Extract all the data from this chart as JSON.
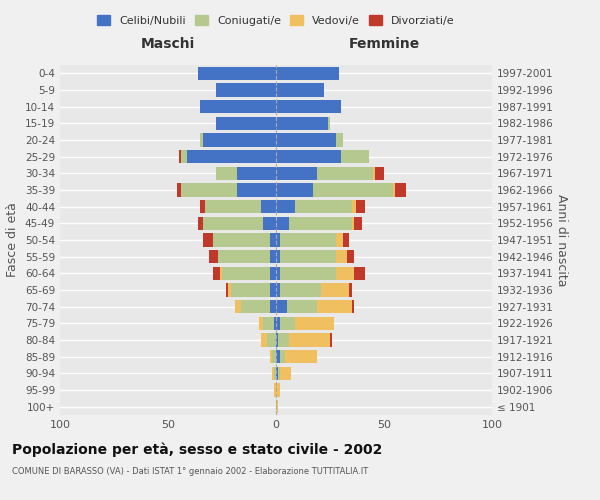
{
  "age_groups": [
    "100+",
    "95-99",
    "90-94",
    "85-89",
    "80-84",
    "75-79",
    "70-74",
    "65-69",
    "60-64",
    "55-59",
    "50-54",
    "45-49",
    "40-44",
    "35-39",
    "30-34",
    "25-29",
    "20-24",
    "15-19",
    "10-14",
    "5-9",
    "0-4"
  ],
  "birth_years": [
    "≤ 1901",
    "1902-1906",
    "1907-1911",
    "1912-1916",
    "1917-1921",
    "1922-1926",
    "1927-1931",
    "1932-1936",
    "1937-1941",
    "1942-1946",
    "1947-1951",
    "1952-1956",
    "1957-1961",
    "1962-1966",
    "1967-1971",
    "1972-1976",
    "1977-1981",
    "1982-1986",
    "1987-1991",
    "1992-1996",
    "1997-2001"
  ],
  "colors": {
    "celibi": "#4472c4",
    "coniugati": "#b5c98e",
    "vedovi": "#f0c060",
    "divorziati": "#c0392b"
  },
  "males": {
    "celibi": [
      0,
      0,
      0,
      0,
      0,
      1,
      3,
      3,
      3,
      3,
      3,
      6,
      7,
      18,
      18,
      41,
      34,
      28,
      35,
      28,
      36
    ],
    "coniugati": [
      0,
      0,
      1,
      2,
      4,
      5,
      13,
      18,
      22,
      24,
      26,
      28,
      26,
      26,
      10,
      3,
      1,
      0,
      0,
      0,
      0
    ],
    "vedovi": [
      0,
      1,
      1,
      1,
      3,
      2,
      3,
      1,
      1,
      0,
      0,
      0,
      0,
      0,
      0,
      0,
      0,
      0,
      0,
      0,
      0
    ],
    "divorziati": [
      0,
      0,
      0,
      0,
      0,
      0,
      0,
      1,
      3,
      4,
      5,
      2,
      2,
      2,
      0,
      1,
      0,
      0,
      0,
      0,
      0
    ]
  },
  "females": {
    "celibi": [
      0,
      0,
      1,
      2,
      1,
      2,
      5,
      2,
      2,
      2,
      2,
      6,
      9,
      17,
      19,
      30,
      28,
      24,
      30,
      22,
      29
    ],
    "coniugati": [
      0,
      0,
      1,
      2,
      5,
      7,
      14,
      19,
      26,
      26,
      26,
      29,
      26,
      37,
      26,
      13,
      3,
      1,
      0,
      0,
      0
    ],
    "vedovi": [
      1,
      2,
      5,
      15,
      19,
      18,
      16,
      13,
      8,
      5,
      3,
      1,
      2,
      1,
      1,
      0,
      0,
      0,
      0,
      0,
      0
    ],
    "divorziati": [
      0,
      0,
      0,
      0,
      1,
      0,
      1,
      1,
      5,
      3,
      3,
      4,
      4,
      5,
      4,
      0,
      0,
      0,
      0,
      0,
      0
    ]
  },
  "title": "Popolazione per età, sesso e stato civile - 2002",
  "subtitle": "COMUNE DI BARASSO (VA) - Dati ISTAT 1° gennaio 2002 - Elaborazione TUTTITALIA.IT",
  "xlabel_maschi": "Maschi",
  "xlabel_femmine": "Femmine",
  "ylabel_left": "Fasce di età",
  "ylabel_right": "Anni di nascita",
  "xlim": 100,
  "bg_color": "#f0f0f0",
  "grid_color": "#ffffff",
  "bar_height": 0.8
}
